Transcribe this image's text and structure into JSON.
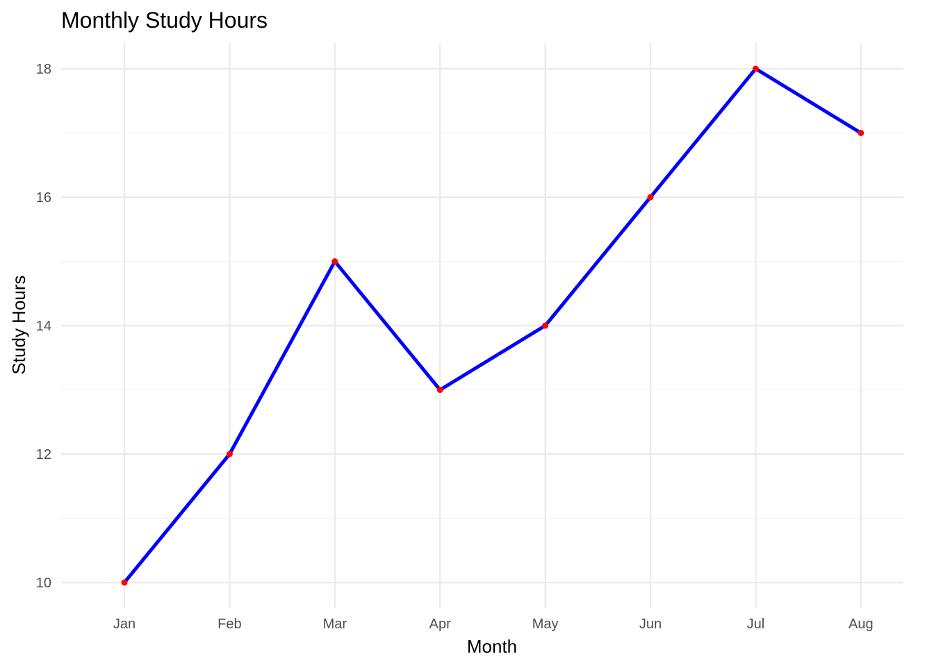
{
  "chart_data": {
    "type": "line",
    "title": "Monthly Study Hours",
    "xlabel": "Month",
    "ylabel": "Study Hours",
    "categories": [
      "Jan",
      "Feb",
      "Mar",
      "Apr",
      "May",
      "Jun",
      "Jul",
      "Aug"
    ],
    "series": [
      {
        "values": [
          10,
          12,
          15,
          13,
          14,
          16,
          18,
          17
        ],
        "line_color": "#0000ff",
        "point_color": "#ff0000"
      }
    ],
    "ylim": [
      9.6,
      18.4
    ],
    "y_ticks": [
      10,
      12,
      14,
      16,
      18
    ],
    "y_ticks_text": [
      "10",
      "12",
      "14",
      "16",
      "18"
    ],
    "y_minor_ticks": [
      11,
      13,
      15,
      17
    ],
    "grid": true,
    "legend": "none",
    "colors": {
      "background": "#ffffff",
      "grid_major": "#ebebeb",
      "grid_minor": "#f2f2f2"
    }
  }
}
